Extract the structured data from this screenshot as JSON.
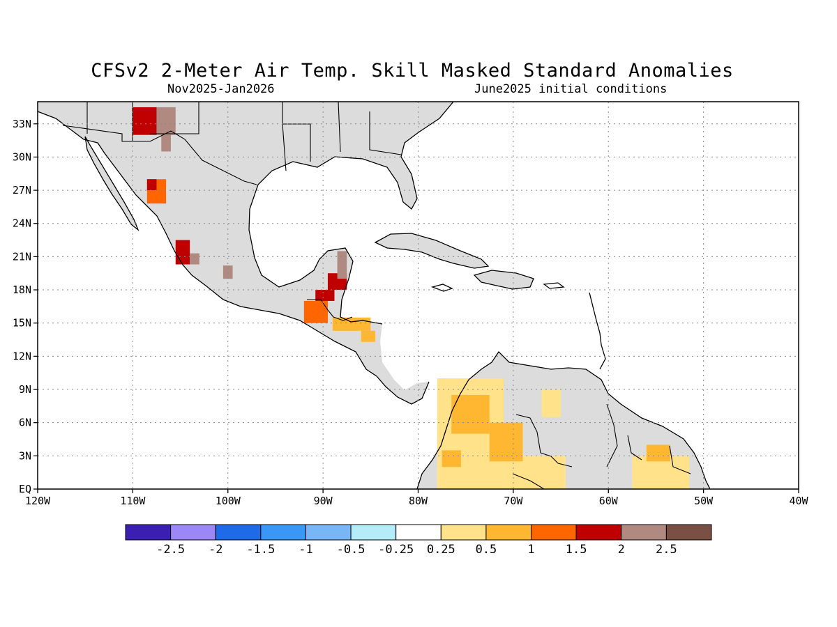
{
  "header": {
    "title": "CFSv2 2-Meter Air Temp. Skill Masked Standard Anomalies",
    "valid_period": "Nov2025-Jan2026",
    "init": "June2025 initial conditions"
  },
  "map": {
    "lon_range": [
      -120,
      -40
    ],
    "lat_range": [
      0,
      35
    ],
    "lon_ticks": [
      {
        "v": -120,
        "label": "120W"
      },
      {
        "v": -110,
        "label": "110W"
      },
      {
        "v": -100,
        "label": "100W"
      },
      {
        "v": -90,
        "label": "90W"
      },
      {
        "v": -80,
        "label": "80W"
      },
      {
        "v": -70,
        "label": "70W"
      },
      {
        "v": -60,
        "label": "60W"
      },
      {
        "v": -50,
        "label": "50W"
      },
      {
        "v": -40,
        "label": "40W"
      }
    ],
    "lat_ticks": [
      {
        "v": 0,
        "label": "EQ"
      },
      {
        "v": 3,
        "label": "3N"
      },
      {
        "v": 6,
        "label": "6N"
      },
      {
        "v": 9,
        "label": "9N"
      },
      {
        "v": 12,
        "label": "12N"
      },
      {
        "v": 15,
        "label": "15N"
      },
      {
        "v": 18,
        "label": "18N"
      },
      {
        "v": 21,
        "label": "21N"
      },
      {
        "v": 24,
        "label": "24N"
      },
      {
        "v": 27,
        "label": "27N"
      },
      {
        "v": 30,
        "label": "30N"
      },
      {
        "v": 33,
        "label": "33N"
      }
    ],
    "grid": true,
    "land_fill": "#dcdcdc",
    "coast_color": "#000000"
  },
  "chart_data": {
    "type": "heatmap",
    "title": "CFSv2 2-Meter Air Temp. Skill Masked Standard Anomalies",
    "xlabel": "",
    "ylabel": "",
    "xlim": [
      -120,
      -40
    ],
    "ylim": [
      0,
      35
    ],
    "anomaly_cells": [
      {
        "lon": [
          -110,
          -107.5
        ],
        "lat": [
          32,
          34.5
        ],
        "bin": "1.5 to 2"
      },
      {
        "lon": [
          -107.5,
          -105.5
        ],
        "lat": [
          32,
          34.5
        ],
        "bin": "2 to 2.5"
      },
      {
        "lon": [
          -107,
          -106
        ],
        "lat": [
          30.5,
          32
        ],
        "bin": "2 to 2.5"
      },
      {
        "lon": [
          -108.5,
          -106.5
        ],
        "lat": [
          25.8,
          28
        ],
        "bin": "1 to 1.5"
      },
      {
        "lon": [
          -108.5,
          -107.5
        ],
        "lat": [
          27,
          28
        ],
        "bin": "1.5 to 2"
      },
      {
        "lon": [
          -105.5,
          -104
        ],
        "lat": [
          20.3,
          22.5
        ],
        "bin": "1.5 to 2"
      },
      {
        "lon": [
          -104,
          -103
        ],
        "lat": [
          20.3,
          21.3
        ],
        "bin": "2 to 2.5"
      },
      {
        "lon": [
          -100.5,
          -99.5
        ],
        "lat": [
          19,
          20.2
        ],
        "bin": "2 to 2.5"
      },
      {
        "lon": [
          -88.5,
          -87.5
        ],
        "lat": [
          19,
          21.5
        ],
        "bin": "2 to 2.5"
      },
      {
        "lon": [
          -89.5,
          -87.5
        ],
        "lat": [
          18,
          19.5
        ],
        "bin": "1.5 to 2"
      },
      {
        "lon": [
          -90.8,
          -88.8
        ],
        "lat": [
          17,
          18
        ],
        "bin": "1.5 to 2"
      },
      {
        "lon": [
          -92,
          -89.5
        ],
        "lat": [
          15,
          17
        ],
        "bin": "1 to 1.5"
      },
      {
        "lon": [
          -89,
          -85
        ],
        "lat": [
          14.3,
          15.5
        ],
        "bin": "0.5 to 1"
      },
      {
        "lon": [
          -86,
          -84.5
        ],
        "lat": [
          13.3,
          14.3
        ],
        "bin": "0.5 to 1"
      },
      {
        "lon": [
          -76.5,
          -72.5
        ],
        "lat": [
          5,
          8.5
        ],
        "bin": "0.5 to 1"
      },
      {
        "lon": [
          -72.5,
          -69
        ],
        "lat": [
          2.5,
          6
        ],
        "bin": "0.5 to 1"
      },
      {
        "lon": [
          -77.5,
          -75.5
        ],
        "lat": [
          2,
          3.5
        ],
        "bin": "0.5 to 1"
      },
      {
        "lon": [
          -56,
          -53.5
        ],
        "lat": [
          2.5,
          4
        ],
        "bin": "0.5 to 1"
      },
      {
        "lon": [
          -78,
          -71
        ],
        "lat": [
          0,
          10
        ],
        "bin": "0.25 to 0.5"
      },
      {
        "lon": [
          -71,
          -64.5
        ],
        "lat": [
          0,
          3
        ],
        "bin": "0.25 to 0.5"
      },
      {
        "lon": [
          -67,
          -65
        ],
        "lat": [
          6.5,
          9
        ],
        "bin": "0.25 to 0.5"
      },
      {
        "lon": [
          -57.5,
          -51.5
        ],
        "lat": [
          0,
          3
        ],
        "bin": "0.25 to 0.5"
      }
    ]
  },
  "colorbar": {
    "colors": [
      "#3b1fb3",
      "#9b87f5",
      "#1e6ae8",
      "#3b97f5",
      "#78b6f5",
      "#b4ecfa",
      "#ffffff",
      "#ffe28a",
      "#ffb732",
      "#ff6600",
      "#c00000",
      "#b08a80",
      "#7a5044"
    ],
    "labels": [
      "-2.5",
      "-2",
      "-1.5",
      "-1",
      "-0.5",
      "-0.25",
      "0.25",
      "0.5",
      "1",
      "1.5",
      "2",
      "2.5"
    ]
  }
}
